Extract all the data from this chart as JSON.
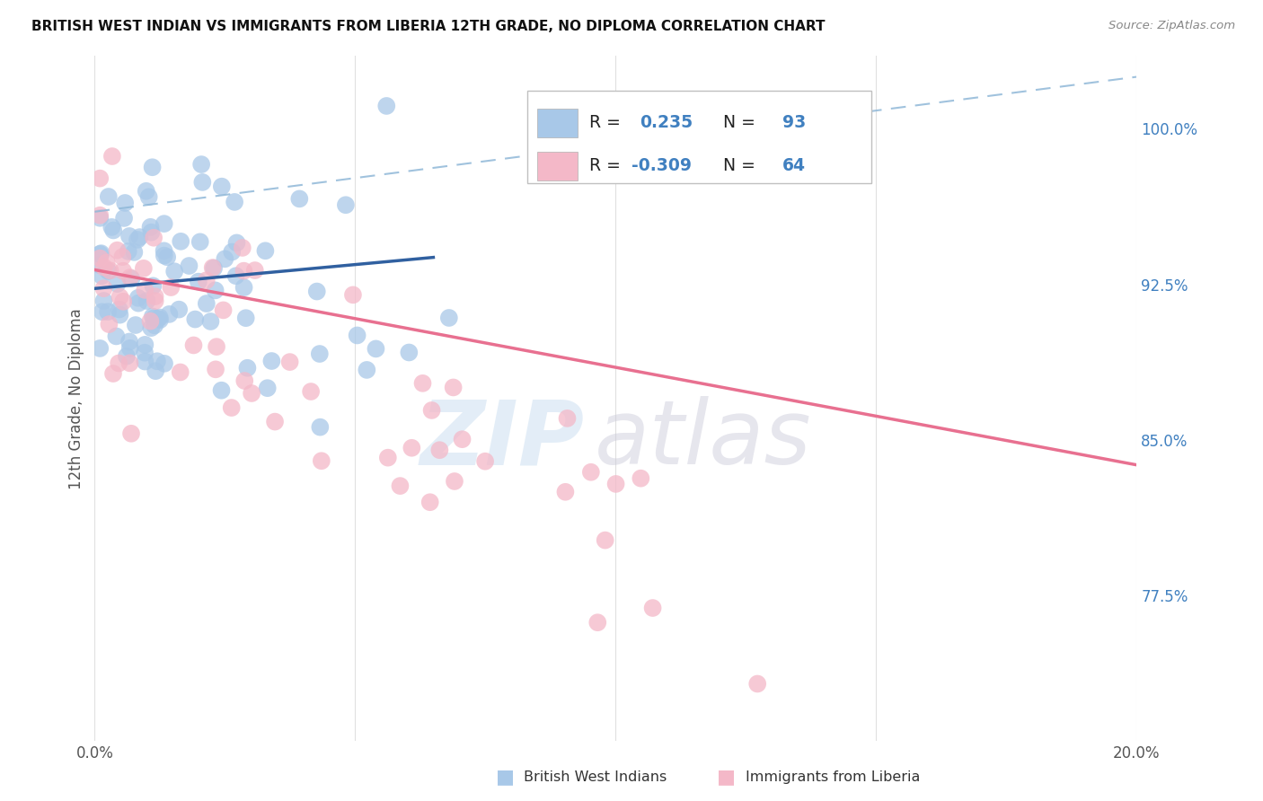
{
  "title": "BRITISH WEST INDIAN VS IMMIGRANTS FROM LIBERIA 12TH GRADE, NO DIPLOMA CORRELATION CHART",
  "source": "Source: ZipAtlas.com",
  "ylabel": "12th Grade, No Diploma",
  "ytick_labels": [
    "100.0%",
    "92.5%",
    "85.0%",
    "77.5%"
  ],
  "ytick_values": [
    1.0,
    0.925,
    0.85,
    0.775
  ],
  "xlim": [
    0.0,
    0.2
  ],
  "ylim": [
    0.705,
    1.035
  ],
  "legend_r_blue": "0.235",
  "legend_n_blue": "93",
  "legend_r_pink": "-0.309",
  "legend_n_pink": "64",
  "color_blue": "#a8c8e8",
  "color_pink": "#f4b8c8",
  "color_blue_line": "#3060a0",
  "color_pink_line": "#e87090",
  "color_blue_dash": "#90b8d8",
  "watermark_zip": "ZIP",
  "watermark_atlas": "atlas",
  "blue_line_x": [
    0.0,
    0.065
  ],
  "blue_line_y0": 0.923,
  "blue_line_y1": 0.938,
  "dash_line_x": [
    0.0,
    0.2
  ],
  "dash_line_y0": 0.96,
  "dash_line_y1": 1.025,
  "pink_line_x": [
    0.0,
    0.2
  ],
  "pink_line_y0": 0.932,
  "pink_line_y1": 0.838
}
